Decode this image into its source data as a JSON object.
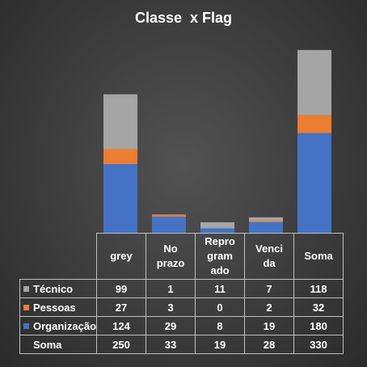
{
  "chart_data": {
    "type": "bar",
    "stacked": true,
    "title": "Classe  x Flag",
    "categories": [
      "grey",
      "No\nprazo",
      "Repro\ngram\nado",
      "Venci\nda",
      "Soma"
    ],
    "series": [
      {
        "name": "Técnico",
        "color": "#a5a5a5",
        "values": [
          99,
          1,
          11,
          7,
          118
        ]
      },
      {
        "name": "Pessoas",
        "color": "#ed7d31",
        "values": [
          27,
          3,
          0,
          2,
          32
        ]
      },
      {
        "name": "Organização",
        "color": "#4472c4",
        "values": [
          124,
          29,
          8,
          19,
          180
        ]
      }
    ],
    "totals_row": {
      "name": "Soma",
      "values": [
        250,
        33,
        19,
        28,
        330
      ]
    },
    "ylim": [
      0,
      340
    ],
    "legend": "data-table",
    "grid": false
  }
}
